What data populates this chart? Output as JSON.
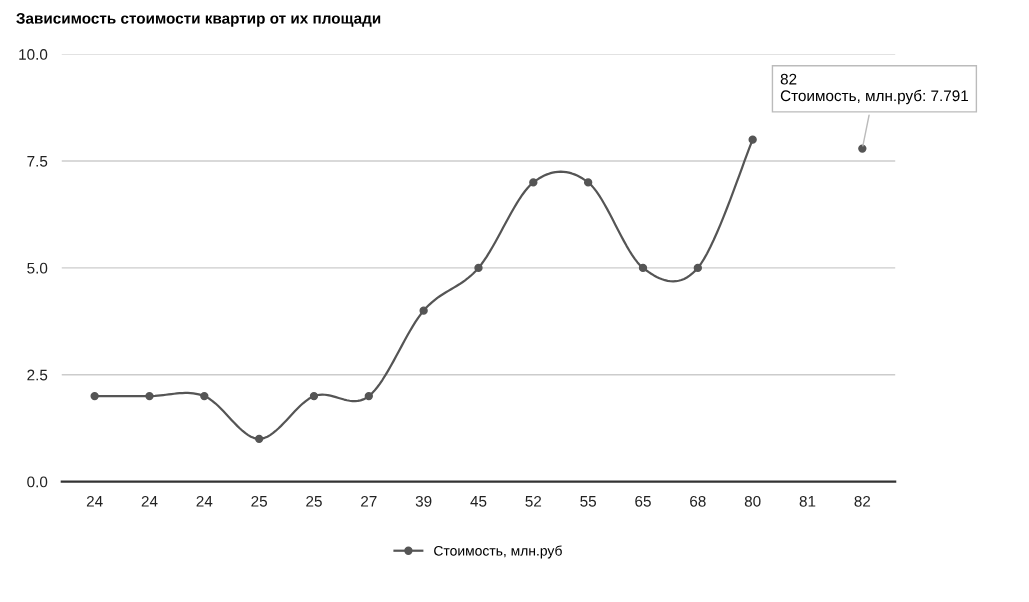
{
  "chart_data": {
    "type": "line",
    "title": "Зависимость стоимости квартир от их площади",
    "categories": [
      "24",
      "24",
      "24",
      "25",
      "25",
      "27",
      "39",
      "45",
      "52",
      "55",
      "65",
      "68",
      "80",
      "81",
      "82"
    ],
    "series": [
      {
        "name": "Стоимость, млн.руб",
        "color": "#555555",
        "values": [
          2,
          2,
          2,
          1,
          2,
          2,
          4,
          5,
          7,
          7,
          5,
          5,
          8,
          null,
          7.791
        ]
      }
    ],
    "ylim": [
      0,
      10
    ],
    "yticks": [
      {
        "value": 0,
        "label": "0.0"
      },
      {
        "value": 2.5,
        "label": "2.5"
      },
      {
        "value": 5,
        "label": "5.0"
      },
      {
        "value": 7.5,
        "label": "7.5"
      },
      {
        "value": 10,
        "label": "10.0"
      }
    ],
    "grid": "y",
    "legend": "bottom",
    "marker": "circle",
    "line_style": "solid",
    "annotations": [
      {
        "text": "82\nСтоимость, млн.руб: 7.791",
        "x": "82",
        "y": 7.791
      }
    ]
  }
}
